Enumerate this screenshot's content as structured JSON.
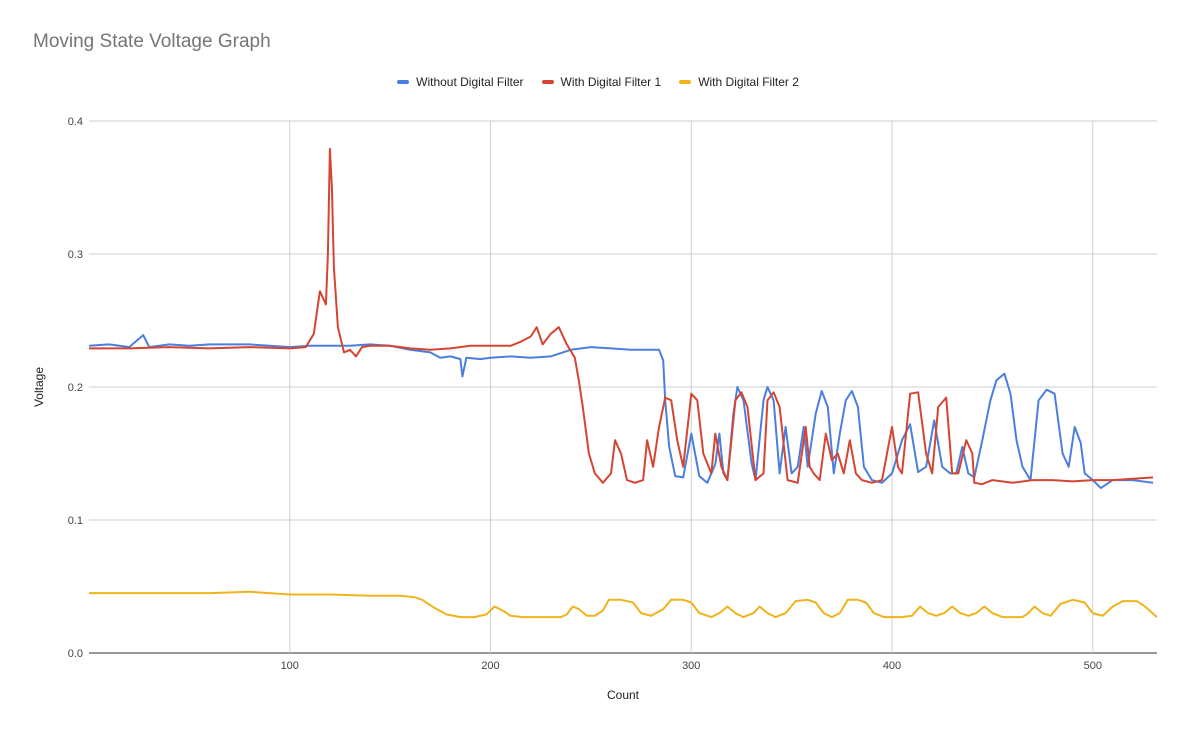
{
  "chart_data": {
    "type": "line",
    "title": "Moving State Voltage Graph",
    "xlabel": "Count",
    "ylabel": "Voltage",
    "xlim": [
      0,
      532
    ],
    "ylim": [
      0,
      0.4
    ],
    "x_ticks": [
      100,
      200,
      300,
      400,
      500
    ],
    "y_ticks": [
      0.0,
      0.1,
      0.2,
      0.3,
      0.4
    ],
    "y_tick_labels": [
      "0.0",
      "0.1",
      "0.2",
      "0.3",
      "0.4"
    ],
    "grid": true,
    "legend_position": "top",
    "series": [
      {
        "name": "Without Digital Filter",
        "color": "#4a7fe0",
        "points": [
          [
            0,
            0.231
          ],
          [
            10,
            0.232
          ],
          [
            20,
            0.23
          ],
          [
            27,
            0.239
          ],
          [
            30,
            0.23
          ],
          [
            40,
            0.232
          ],
          [
            50,
            0.231
          ],
          [
            60,
            0.232
          ],
          [
            70,
            0.232
          ],
          [
            80,
            0.232
          ],
          [
            90,
            0.231
          ],
          [
            100,
            0.23
          ],
          [
            110,
            0.231
          ],
          [
            120,
            0.231
          ],
          [
            130,
            0.231
          ],
          [
            140,
            0.232
          ],
          [
            150,
            0.231
          ],
          [
            160,
            0.228
          ],
          [
            170,
            0.226
          ],
          [
            175,
            0.222
          ],
          [
            180,
            0.223
          ],
          [
            185,
            0.221
          ],
          [
            186,
            0.208
          ],
          [
            188,
            0.222
          ],
          [
            195,
            0.221
          ],
          [
            200,
            0.222
          ],
          [
            210,
            0.223
          ],
          [
            220,
            0.222
          ],
          [
            230,
            0.223
          ],
          [
            240,
            0.228
          ],
          [
            250,
            0.23
          ],
          [
            260,
            0.229
          ],
          [
            270,
            0.228
          ],
          [
            280,
            0.228
          ],
          [
            284,
            0.228
          ],
          [
            286,
            0.22
          ],
          [
            287,
            0.19
          ],
          [
            289,
            0.155
          ],
          [
            292,
            0.133
          ],
          [
            296,
            0.132
          ],
          [
            300,
            0.165
          ],
          [
            304,
            0.133
          ],
          [
            308,
            0.128
          ],
          [
            312,
            0.142
          ],
          [
            314,
            0.165
          ],
          [
            316,
            0.135
          ],
          [
            318,
            0.13
          ],
          [
            321,
            0.18
          ],
          [
            323,
            0.2
          ],
          [
            326,
            0.19
          ],
          [
            330,
            0.143
          ],
          [
            332,
            0.13
          ],
          [
            336,
            0.19
          ],
          [
            338,
            0.2
          ],
          [
            341,
            0.19
          ],
          [
            344,
            0.135
          ],
          [
            347,
            0.17
          ],
          [
            350,
            0.135
          ],
          [
            353,
            0.14
          ],
          [
            356,
            0.17
          ],
          [
            358,
            0.14
          ],
          [
            362,
            0.18
          ],
          [
            365,
            0.197
          ],
          [
            368,
            0.185
          ],
          [
            371,
            0.135
          ],
          [
            374,
            0.165
          ],
          [
            377,
            0.19
          ],
          [
            380,
            0.197
          ],
          [
            383,
            0.185
          ],
          [
            386,
            0.14
          ],
          [
            390,
            0.13
          ],
          [
            395,
            0.128
          ],
          [
            400,
            0.135
          ],
          [
            405,
            0.16
          ],
          [
            409,
            0.172
          ],
          [
            413,
            0.136
          ],
          [
            417,
            0.14
          ],
          [
            421,
            0.175
          ],
          [
            425,
            0.14
          ],
          [
            429,
            0.135
          ],
          [
            432,
            0.135
          ],
          [
            435,
            0.155
          ],
          [
            438,
            0.135
          ],
          [
            441,
            0.132
          ],
          [
            445,
            0.16
          ],
          [
            449,
            0.19
          ],
          [
            452,
            0.205
          ],
          [
            456,
            0.21
          ],
          [
            459,
            0.195
          ],
          [
            462,
            0.16
          ],
          [
            465,
            0.14
          ],
          [
            469,
            0.13
          ],
          [
            473,
            0.19
          ],
          [
            477,
            0.198
          ],
          [
            481,
            0.195
          ],
          [
            485,
            0.15
          ],
          [
            488,
            0.14
          ],
          [
            491,
            0.17
          ],
          [
            494,
            0.158
          ],
          [
            496,
            0.135
          ],
          [
            500,
            0.13
          ],
          [
            504,
            0.124
          ],
          [
            510,
            0.13
          ],
          [
            520,
            0.13
          ],
          [
            530,
            0.128
          ]
        ]
      },
      {
        "name": "With Digital Filter 1",
        "color": "#d64533",
        "points": [
          [
            0,
            0.229
          ],
          [
            20,
            0.229
          ],
          [
            40,
            0.23
          ],
          [
            60,
            0.229
          ],
          [
            80,
            0.23
          ],
          [
            100,
            0.229
          ],
          [
            108,
            0.23
          ],
          [
            112,
            0.24
          ],
          [
            115,
            0.272
          ],
          [
            118,
            0.262
          ],
          [
            119,
            0.3
          ],
          [
            120,
            0.379
          ],
          [
            121,
            0.35
          ],
          [
            122,
            0.29
          ],
          [
            124,
            0.245
          ],
          [
            127,
            0.226
          ],
          [
            130,
            0.228
          ],
          [
            133,
            0.223
          ],
          [
            136,
            0.23
          ],
          [
            140,
            0.231
          ],
          [
            150,
            0.231
          ],
          [
            160,
            0.229
          ],
          [
            170,
            0.228
          ],
          [
            180,
            0.229
          ],
          [
            190,
            0.231
          ],
          [
            200,
            0.231
          ],
          [
            210,
            0.231
          ],
          [
            215,
            0.234
          ],
          [
            220,
            0.238
          ],
          [
            223,
            0.245
          ],
          [
            226,
            0.232
          ],
          [
            230,
            0.24
          ],
          [
            234,
            0.245
          ],
          [
            238,
            0.232
          ],
          [
            242,
            0.222
          ],
          [
            244,
            0.205
          ],
          [
            246,
            0.185
          ],
          [
            249,
            0.15
          ],
          [
            252,
            0.135
          ],
          [
            256,
            0.128
          ],
          [
            260,
            0.135
          ],
          [
            262,
            0.16
          ],
          [
            265,
            0.15
          ],
          [
            268,
            0.13
          ],
          [
            272,
            0.128
          ],
          [
            276,
            0.13
          ],
          [
            278,
            0.16
          ],
          [
            281,
            0.14
          ],
          [
            284,
            0.17
          ],
          [
            287,
            0.192
          ],
          [
            290,
            0.19
          ],
          [
            293,
            0.16
          ],
          [
            296,
            0.14
          ],
          [
            300,
            0.195
          ],
          [
            303,
            0.19
          ],
          [
            306,
            0.15
          ],
          [
            310,
            0.135
          ],
          [
            312,
            0.165
          ],
          [
            315,
            0.14
          ],
          [
            318,
            0.13
          ],
          [
            322,
            0.19
          ],
          [
            325,
            0.196
          ],
          [
            328,
            0.185
          ],
          [
            332,
            0.13
          ],
          [
            336,
            0.135
          ],
          [
            338,
            0.19
          ],
          [
            341,
            0.196
          ],
          [
            344,
            0.185
          ],
          [
            348,
            0.13
          ],
          [
            353,
            0.128
          ],
          [
            357,
            0.17
          ],
          [
            359,
            0.14
          ],
          [
            361,
            0.135
          ],
          [
            364,
            0.13
          ],
          [
            367,
            0.165
          ],
          [
            370,
            0.145
          ],
          [
            373,
            0.15
          ],
          [
            376,
            0.135
          ],
          [
            379,
            0.16
          ],
          [
            382,
            0.135
          ],
          [
            385,
            0.13
          ],
          [
            390,
            0.128
          ],
          [
            395,
            0.13
          ],
          [
            400,
            0.17
          ],
          [
            403,
            0.14
          ],
          [
            405,
            0.135
          ],
          [
            409,
            0.195
          ],
          [
            413,
            0.196
          ],
          [
            417,
            0.15
          ],
          [
            420,
            0.135
          ],
          [
            423,
            0.185
          ],
          [
            427,
            0.192
          ],
          [
            430,
            0.135
          ],
          [
            433,
            0.135
          ],
          [
            437,
            0.16
          ],
          [
            440,
            0.15
          ],
          [
            441,
            0.128
          ],
          [
            445,
            0.127
          ],
          [
            450,
            0.13
          ],
          [
            460,
            0.128
          ],
          [
            470,
            0.13
          ],
          [
            480,
            0.13
          ],
          [
            490,
            0.129
          ],
          [
            500,
            0.13
          ],
          [
            510,
            0.13
          ],
          [
            520,
            0.131
          ],
          [
            530,
            0.132
          ]
        ]
      },
      {
        "name": "With Digital Filter 2",
        "color": "#f0b31c",
        "points": [
          [
            0,
            0.045
          ],
          [
            20,
            0.045
          ],
          [
            40,
            0.045
          ],
          [
            60,
            0.045
          ],
          [
            80,
            0.046
          ],
          [
            100,
            0.044
          ],
          [
            120,
            0.044
          ],
          [
            140,
            0.043
          ],
          [
            155,
            0.043
          ],
          [
            162,
            0.042
          ],
          [
            166,
            0.04
          ],
          [
            172,
            0.034
          ],
          [
            178,
            0.029
          ],
          [
            185,
            0.027
          ],
          [
            192,
            0.027
          ],
          [
            198,
            0.029
          ],
          [
            202,
            0.035
          ],
          [
            206,
            0.032
          ],
          [
            210,
            0.028
          ],
          [
            216,
            0.027
          ],
          [
            225,
            0.027
          ],
          [
            235,
            0.027
          ],
          [
            238,
            0.029
          ],
          [
            241,
            0.035
          ],
          [
            244,
            0.033
          ],
          [
            248,
            0.028
          ],
          [
            252,
            0.028
          ],
          [
            256,
            0.032
          ],
          [
            259,
            0.04
          ],
          [
            265,
            0.04
          ],
          [
            271,
            0.038
          ],
          [
            275,
            0.03
          ],
          [
            280,
            0.028
          ],
          [
            286,
            0.033
          ],
          [
            290,
            0.04
          ],
          [
            296,
            0.04
          ],
          [
            300,
            0.038
          ],
          [
            304,
            0.03
          ],
          [
            310,
            0.027
          ],
          [
            314,
            0.03
          ],
          [
            318,
            0.035
          ],
          [
            322,
            0.03
          ],
          [
            326,
            0.027
          ],
          [
            331,
            0.03
          ],
          [
            334,
            0.035
          ],
          [
            338,
            0.03
          ],
          [
            342,
            0.027
          ],
          [
            347,
            0.03
          ],
          [
            352,
            0.039
          ],
          [
            358,
            0.04
          ],
          [
            362,
            0.038
          ],
          [
            366,
            0.03
          ],
          [
            370,
            0.027
          ],
          [
            374,
            0.03
          ],
          [
            378,
            0.04
          ],
          [
            383,
            0.04
          ],
          [
            387,
            0.038
          ],
          [
            391,
            0.03
          ],
          [
            396,
            0.027
          ],
          [
            405,
            0.027
          ],
          [
            410,
            0.028
          ],
          [
            414,
            0.035
          ],
          [
            418,
            0.03
          ],
          [
            422,
            0.028
          ],
          [
            426,
            0.03
          ],
          [
            430,
            0.035
          ],
          [
            434,
            0.03
          ],
          [
            438,
            0.028
          ],
          [
            442,
            0.03
          ],
          [
            446,
            0.035
          ],
          [
            450,
            0.03
          ],
          [
            455,
            0.027
          ],
          [
            465,
            0.027
          ],
          [
            468,
            0.03
          ],
          [
            471,
            0.035
          ],
          [
            475,
            0.03
          ],
          [
            479,
            0.028
          ],
          [
            484,
            0.037
          ],
          [
            490,
            0.04
          ],
          [
            496,
            0.038
          ],
          [
            500,
            0.03
          ],
          [
            505,
            0.028
          ],
          [
            510,
            0.035
          ],
          [
            515,
            0.039
          ],
          [
            522,
            0.039
          ],
          [
            526,
            0.035
          ],
          [
            532,
            0.027
          ]
        ]
      }
    ]
  }
}
